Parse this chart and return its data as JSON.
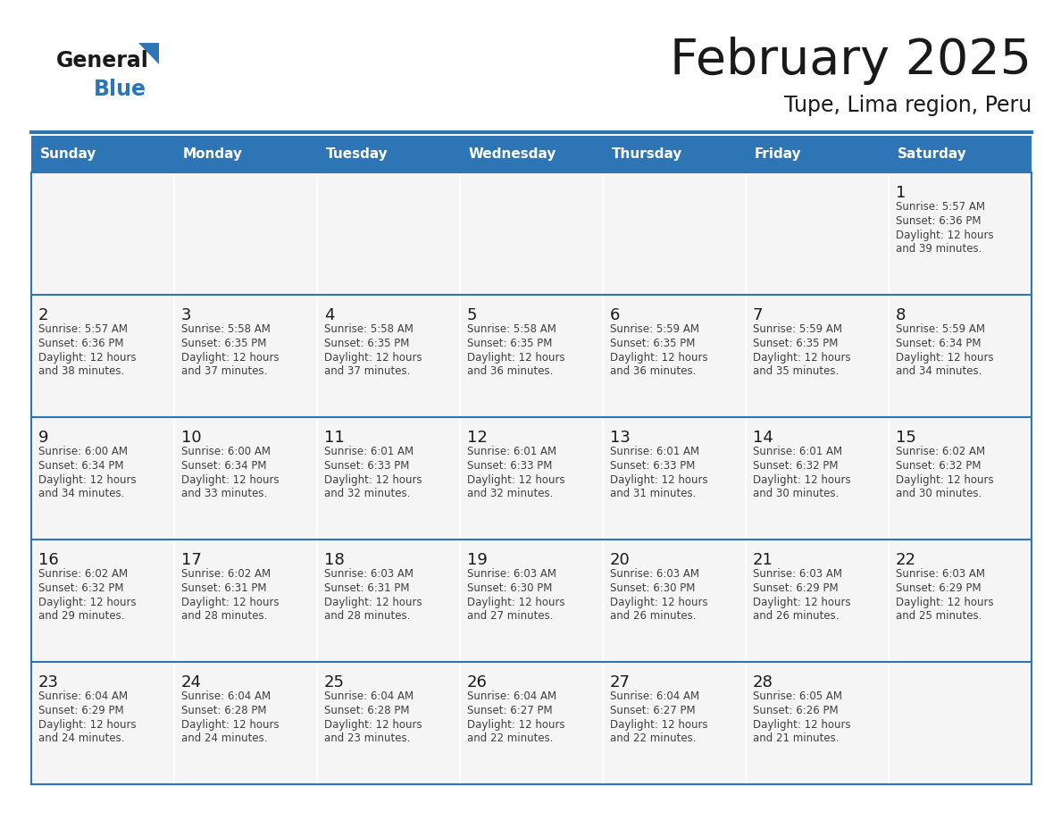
{
  "title": "February 2025",
  "subtitle": "Tupe, Lima region, Peru",
  "header_bg": "#2E75B6",
  "header_text_color": "#FFFFFF",
  "cell_bg": "#FFFFFF",
  "cell_bg_alt": "#F5F5F5",
  "border_color": "#2E75B6",
  "separator_color": "#2E75B6",
  "day_headers": [
    "Sunday",
    "Monday",
    "Tuesday",
    "Wednesday",
    "Thursday",
    "Friday",
    "Saturday"
  ],
  "title_color": "#1a1a1a",
  "subtitle_color": "#1a1a1a",
  "day_number_color": "#1a1a1a",
  "cell_text_color": "#404040",
  "logo_general_color": "#1a1a1a",
  "logo_blue_color": "#2E75B6",
  "logo_triangle_color": "#2E75B6",
  "calendar_data": [
    [
      null,
      null,
      null,
      null,
      null,
      null,
      {
        "day": 1,
        "sunrise": "5:57 AM",
        "sunset": "6:36 PM",
        "daylight": "12 hours",
        "daylight2": "and 39 minutes."
      }
    ],
    [
      {
        "day": 2,
        "sunrise": "5:57 AM",
        "sunset": "6:36 PM",
        "daylight": "12 hours",
        "daylight2": "and 38 minutes."
      },
      {
        "day": 3,
        "sunrise": "5:58 AM",
        "sunset": "6:35 PM",
        "daylight": "12 hours",
        "daylight2": "and 37 minutes."
      },
      {
        "day": 4,
        "sunrise": "5:58 AM",
        "sunset": "6:35 PM",
        "daylight": "12 hours",
        "daylight2": "and 37 minutes."
      },
      {
        "day": 5,
        "sunrise": "5:58 AM",
        "sunset": "6:35 PM",
        "daylight": "12 hours",
        "daylight2": "and 36 minutes."
      },
      {
        "day": 6,
        "sunrise": "5:59 AM",
        "sunset": "6:35 PM",
        "daylight": "12 hours",
        "daylight2": "and 36 minutes."
      },
      {
        "day": 7,
        "sunrise": "5:59 AM",
        "sunset": "6:35 PM",
        "daylight": "12 hours",
        "daylight2": "and 35 minutes."
      },
      {
        "day": 8,
        "sunrise": "5:59 AM",
        "sunset": "6:34 PM",
        "daylight": "12 hours",
        "daylight2": "and 34 minutes."
      }
    ],
    [
      {
        "day": 9,
        "sunrise": "6:00 AM",
        "sunset": "6:34 PM",
        "daylight": "12 hours",
        "daylight2": "and 34 minutes."
      },
      {
        "day": 10,
        "sunrise": "6:00 AM",
        "sunset": "6:34 PM",
        "daylight": "12 hours",
        "daylight2": "and 33 minutes."
      },
      {
        "day": 11,
        "sunrise": "6:01 AM",
        "sunset": "6:33 PM",
        "daylight": "12 hours",
        "daylight2": "and 32 minutes."
      },
      {
        "day": 12,
        "sunrise": "6:01 AM",
        "sunset": "6:33 PM",
        "daylight": "12 hours",
        "daylight2": "and 32 minutes."
      },
      {
        "day": 13,
        "sunrise": "6:01 AM",
        "sunset": "6:33 PM",
        "daylight": "12 hours",
        "daylight2": "and 31 minutes."
      },
      {
        "day": 14,
        "sunrise": "6:01 AM",
        "sunset": "6:32 PM",
        "daylight": "12 hours",
        "daylight2": "and 30 minutes."
      },
      {
        "day": 15,
        "sunrise": "6:02 AM",
        "sunset": "6:32 PM",
        "daylight": "12 hours",
        "daylight2": "and 30 minutes."
      }
    ],
    [
      {
        "day": 16,
        "sunrise": "6:02 AM",
        "sunset": "6:32 PM",
        "daylight": "12 hours",
        "daylight2": "and 29 minutes."
      },
      {
        "day": 17,
        "sunrise": "6:02 AM",
        "sunset": "6:31 PM",
        "daylight": "12 hours",
        "daylight2": "and 28 minutes."
      },
      {
        "day": 18,
        "sunrise": "6:03 AM",
        "sunset": "6:31 PM",
        "daylight": "12 hours",
        "daylight2": "and 28 minutes."
      },
      {
        "day": 19,
        "sunrise": "6:03 AM",
        "sunset": "6:30 PM",
        "daylight": "12 hours",
        "daylight2": "and 27 minutes."
      },
      {
        "day": 20,
        "sunrise": "6:03 AM",
        "sunset": "6:30 PM",
        "daylight": "12 hours",
        "daylight2": "and 26 minutes."
      },
      {
        "day": 21,
        "sunrise": "6:03 AM",
        "sunset": "6:29 PM",
        "daylight": "12 hours",
        "daylight2": "and 26 minutes."
      },
      {
        "day": 22,
        "sunrise": "6:03 AM",
        "sunset": "6:29 PM",
        "daylight": "12 hours",
        "daylight2": "and 25 minutes."
      }
    ],
    [
      {
        "day": 23,
        "sunrise": "6:04 AM",
        "sunset": "6:29 PM",
        "daylight": "12 hours",
        "daylight2": "and 24 minutes."
      },
      {
        "day": 24,
        "sunrise": "6:04 AM",
        "sunset": "6:28 PM",
        "daylight": "12 hours",
        "daylight2": "and 24 minutes."
      },
      {
        "day": 25,
        "sunrise": "6:04 AM",
        "sunset": "6:28 PM",
        "daylight": "12 hours",
        "daylight2": "and 23 minutes."
      },
      {
        "day": 26,
        "sunrise": "6:04 AM",
        "sunset": "6:27 PM",
        "daylight": "12 hours",
        "daylight2": "and 22 minutes."
      },
      {
        "day": 27,
        "sunrise": "6:04 AM",
        "sunset": "6:27 PM",
        "daylight": "12 hours",
        "daylight2": "and 22 minutes."
      },
      {
        "day": 28,
        "sunrise": "6:05 AM",
        "sunset": "6:26 PM",
        "daylight": "12 hours",
        "daylight2": "and 21 minutes."
      },
      null
    ]
  ]
}
